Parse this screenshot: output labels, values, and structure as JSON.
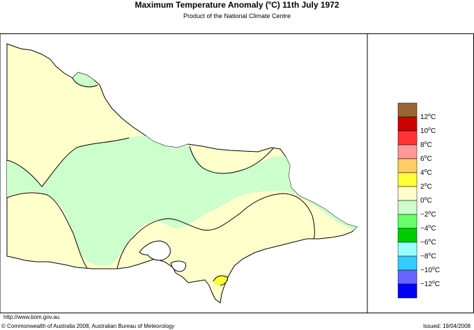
{
  "header": {
    "title_main": "Maximum Temperature Anomaly (",
    "title_unit_sup": "o",
    "title_rest": "C)  11th July 1972",
    "subtitle": "Product of the National Climate Centre"
  },
  "footer": {
    "url": "http://www.bom.gov.au",
    "copyright": "© Commonwealth of Australia 2008, Australian Bureau of Meteorology",
    "issued": "Issued: 19/04/2008"
  },
  "legend": {
    "top_color": "#996633",
    "items": [
      {
        "value": "12",
        "color": "#cc0000"
      },
      {
        "value": "10",
        "color": "#ff3333"
      },
      {
        "value": "8",
        "color": "#ff9999"
      },
      {
        "value": "6",
        "color": "#ffcc66"
      },
      {
        "value": "4",
        "color": "#ffff33"
      },
      {
        "value": "2",
        "color": "#ffffcc"
      },
      {
        "value": "0",
        "color": "#ccffcc"
      },
      {
        "value": "−2",
        "color": "#66ff66"
      },
      {
        "value": "−4",
        "color": "#00cc00"
      },
      {
        "value": "−6",
        "color": "#99ffff"
      },
      {
        "value": "−8",
        "color": "#33ccff"
      },
      {
        "value": "−10",
        "color": "#6666ff"
      },
      {
        "value": "−12",
        "color": "#0000ff"
      }
    ],
    "unit_sup": "o",
    "unit": "C"
  },
  "map": {
    "fill_warm": "#ffffcc",
    "fill_cool": "#ccffcc",
    "fill_hot": "#ffff33"
  }
}
